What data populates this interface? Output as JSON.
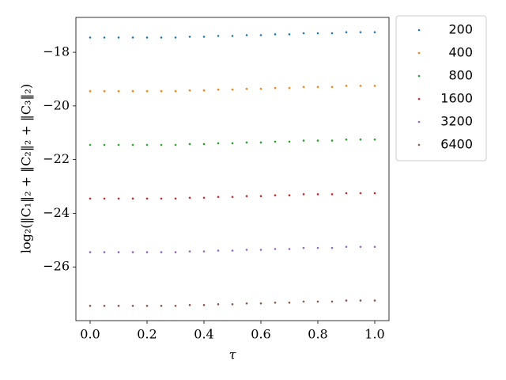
{
  "chart_data": {
    "type": "scatter",
    "y_label": "log₂(‖C₁‖₂ + ‖C₂‖₂ + ‖C₃‖₂)",
    "x_label": "τ",
    "x": [
      0.0,
      0.05,
      0.1,
      0.15,
      0.2,
      0.25,
      0.3,
      0.35,
      0.4,
      0.45,
      0.5,
      0.55,
      0.6,
      0.65,
      0.7,
      0.75,
      0.8,
      0.85,
      0.9,
      0.95,
      1.0
    ],
    "series": [
      {
        "name": "200",
        "color": "#1f77b4",
        "values": [
          -17.45,
          -17.45,
          -17.45,
          -17.45,
          -17.45,
          -17.45,
          -17.45,
          -17.42,
          -17.42,
          -17.39,
          -17.39,
          -17.36,
          -17.36,
          -17.33,
          -17.33,
          -17.29,
          -17.29,
          -17.29,
          -17.25,
          -17.25,
          -17.25
        ]
      },
      {
        "name": "400",
        "color": "#ff7f0e",
        "values": [
          -19.45,
          -19.45,
          -19.45,
          -19.45,
          -19.45,
          -19.45,
          -19.45,
          -19.42,
          -19.42,
          -19.39,
          -19.39,
          -19.36,
          -19.36,
          -19.33,
          -19.33,
          -19.29,
          -19.29,
          -19.29,
          -19.25,
          -19.25,
          -19.25
        ]
      },
      {
        "name": "800",
        "color": "#2ca02c",
        "values": [
          -21.45,
          -21.45,
          -21.45,
          -21.45,
          -21.45,
          -21.45,
          -21.45,
          -21.42,
          -21.42,
          -21.39,
          -21.39,
          -21.36,
          -21.36,
          -21.33,
          -21.33,
          -21.29,
          -21.29,
          -21.29,
          -21.25,
          -21.25,
          -21.25
        ]
      },
      {
        "name": "1600",
        "color": "#d62728",
        "values": [
          -23.45,
          -23.45,
          -23.45,
          -23.45,
          -23.45,
          -23.45,
          -23.45,
          -23.42,
          -23.42,
          -23.39,
          -23.39,
          -23.36,
          -23.36,
          -23.33,
          -23.33,
          -23.29,
          -23.29,
          -23.29,
          -23.25,
          -23.25,
          -23.25
        ]
      },
      {
        "name": "3200",
        "color": "#9467bd",
        "values": [
          -25.45,
          -25.45,
          -25.45,
          -25.45,
          -25.45,
          -25.45,
          -25.45,
          -25.42,
          -25.42,
          -25.39,
          -25.39,
          -25.36,
          -25.36,
          -25.33,
          -25.33,
          -25.29,
          -25.29,
          -25.29,
          -25.25,
          -25.25,
          -25.25
        ]
      },
      {
        "name": "6400",
        "color": "#8c564b",
        "values": [
          -27.45,
          -27.45,
          -27.45,
          -27.45,
          -27.45,
          -27.45,
          -27.45,
          -27.42,
          -27.42,
          -27.39,
          -27.39,
          -27.36,
          -27.36,
          -27.33,
          -27.33,
          -27.29,
          -27.29,
          -27.29,
          -27.25,
          -27.25,
          -27.25
        ]
      }
    ],
    "xlim": [
      -0.05,
      1.05
    ],
    "ylim": [
      -28.0,
      -16.7
    ],
    "xticks": [
      {
        "value": 0.0,
        "label": "0.0"
      },
      {
        "value": 0.2,
        "label": "0.2"
      },
      {
        "value": 0.4,
        "label": "0.4"
      },
      {
        "value": 0.6,
        "label": "0.6"
      },
      {
        "value": 0.8,
        "label": "0.8"
      },
      {
        "value": 1.0,
        "label": "1.0"
      }
    ],
    "yticks": [
      {
        "value": -18,
        "label": "−18"
      },
      {
        "value": -20,
        "label": "−20"
      },
      {
        "value": -22,
        "label": "−22"
      },
      {
        "value": -24,
        "label": "−24"
      },
      {
        "value": -26,
        "label": "−26"
      }
    ],
    "legend": "outside-right"
  }
}
